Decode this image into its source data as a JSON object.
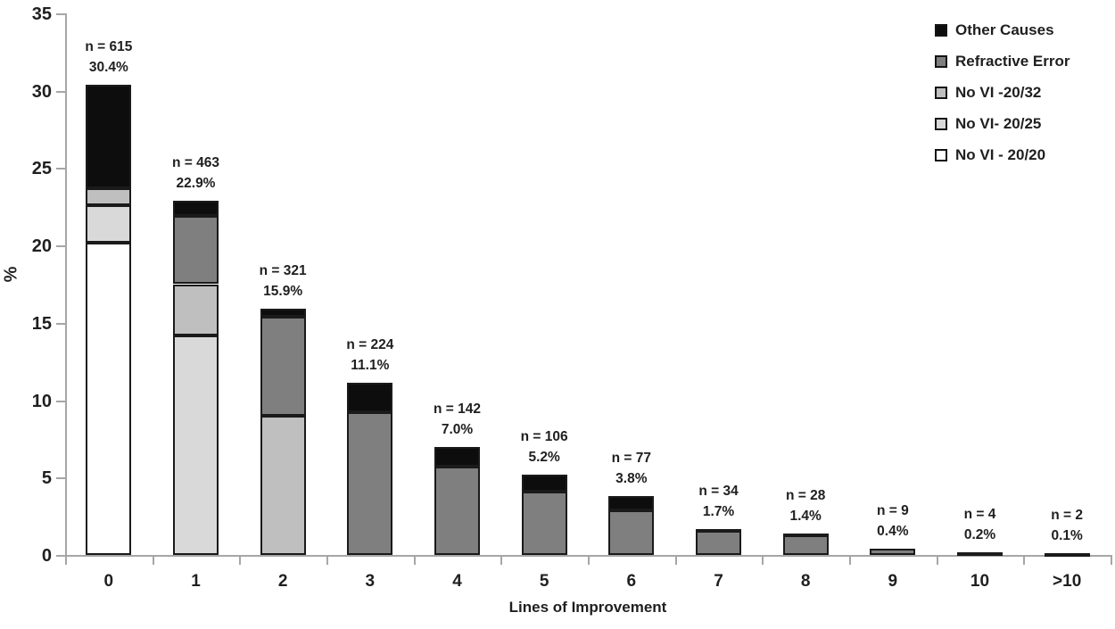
{
  "style": {
    "background": "#ffffff",
    "axis_color": "#a6a6a6",
    "text_color": "#1f1f1f",
    "bar_border_color": "#1a1a1a"
  },
  "chart_data": {
    "type": "bar",
    "stacked": true,
    "title": "",
    "xlabel": "Lines of Improvement",
    "ylabel": "%",
    "categories": [
      "0",
      "1",
      "2",
      "3",
      "4",
      "5",
      "6",
      "7",
      "8",
      "9",
      "10",
      ">10"
    ],
    "ylim": [
      0,
      35
    ],
    "yticks": [
      0,
      5,
      10,
      15,
      20,
      25,
      30,
      35
    ],
    "grid": false,
    "series": [
      {
        "name": "No VI - 20/20",
        "color": "#ffffff",
        "values": [
          20.2,
          0,
          0,
          0,
          0,
          0,
          0,
          0,
          0,
          0,
          0,
          0
        ]
      },
      {
        "name": "No VI- 20/25",
        "color": "#d9d9d9",
        "values": [
          2.4,
          14.2,
          0,
          0,
          0,
          0,
          0,
          0,
          0,
          0,
          0,
          0
        ]
      },
      {
        "name": "No VI -20/32",
        "color": "#bfbfbf",
        "values": [
          1.1,
          3.3,
          9.0,
          0,
          0,
          0,
          0,
          0,
          0,
          0,
          0,
          0
        ]
      },
      {
        "name": "Refractive Error",
        "color": "#7f7f7f",
        "values": [
          0,
          4.4,
          6.4,
          9.2,
          5.7,
          4.1,
          2.9,
          1.6,
          1.3,
          0.4,
          0.2,
          0.1
        ]
      },
      {
        "name": "Other Causes",
        "color": "#0d0d0d",
        "values": [
          6.7,
          1.0,
          0.5,
          1.9,
          1.3,
          1.1,
          0.9,
          0.1,
          0.1,
          0,
          0,
          0
        ]
      }
    ],
    "totals_pct": [
      30.4,
      22.9,
      15.9,
      11.1,
      7.0,
      5.2,
      3.8,
      1.7,
      1.4,
      0.4,
      0.2,
      0.1
    ],
    "bar_labels": [
      {
        "n": "n = 615",
        "pct": "30.4%"
      },
      {
        "n": "n = 463",
        "pct": "22.9%"
      },
      {
        "n": "n = 321",
        "pct": "15.9%"
      },
      {
        "n": "n = 224",
        "pct": "11.1%"
      },
      {
        "n": "n = 142",
        "pct": "7.0%"
      },
      {
        "n": "n = 106",
        "pct": "5.2%"
      },
      {
        "n": "n = 77",
        "pct": "3.8%"
      },
      {
        "n": "n = 34",
        "pct": "1.7%"
      },
      {
        "n": "n = 28",
        "pct": "1.4%"
      },
      {
        "n": "n = 9",
        "pct": "0.4%"
      },
      {
        "n": "n = 4",
        "pct": "0.2%"
      },
      {
        "n": "n = 2",
        "pct": "0.1%"
      }
    ],
    "legend": {
      "position": "top-right",
      "entries": [
        {
          "label": "Other Causes",
          "color": "#0d0d0d"
        },
        {
          "label": "Refractive Error",
          "color": "#7f7f7f"
        },
        {
          "label": "No VI -20/32",
          "color": "#bfbfbf"
        },
        {
          "label": "No VI- 20/25",
          "color": "#d9d9d9"
        },
        {
          "label": "No VI - 20/20",
          "color": "#ffffff"
        }
      ]
    }
  }
}
